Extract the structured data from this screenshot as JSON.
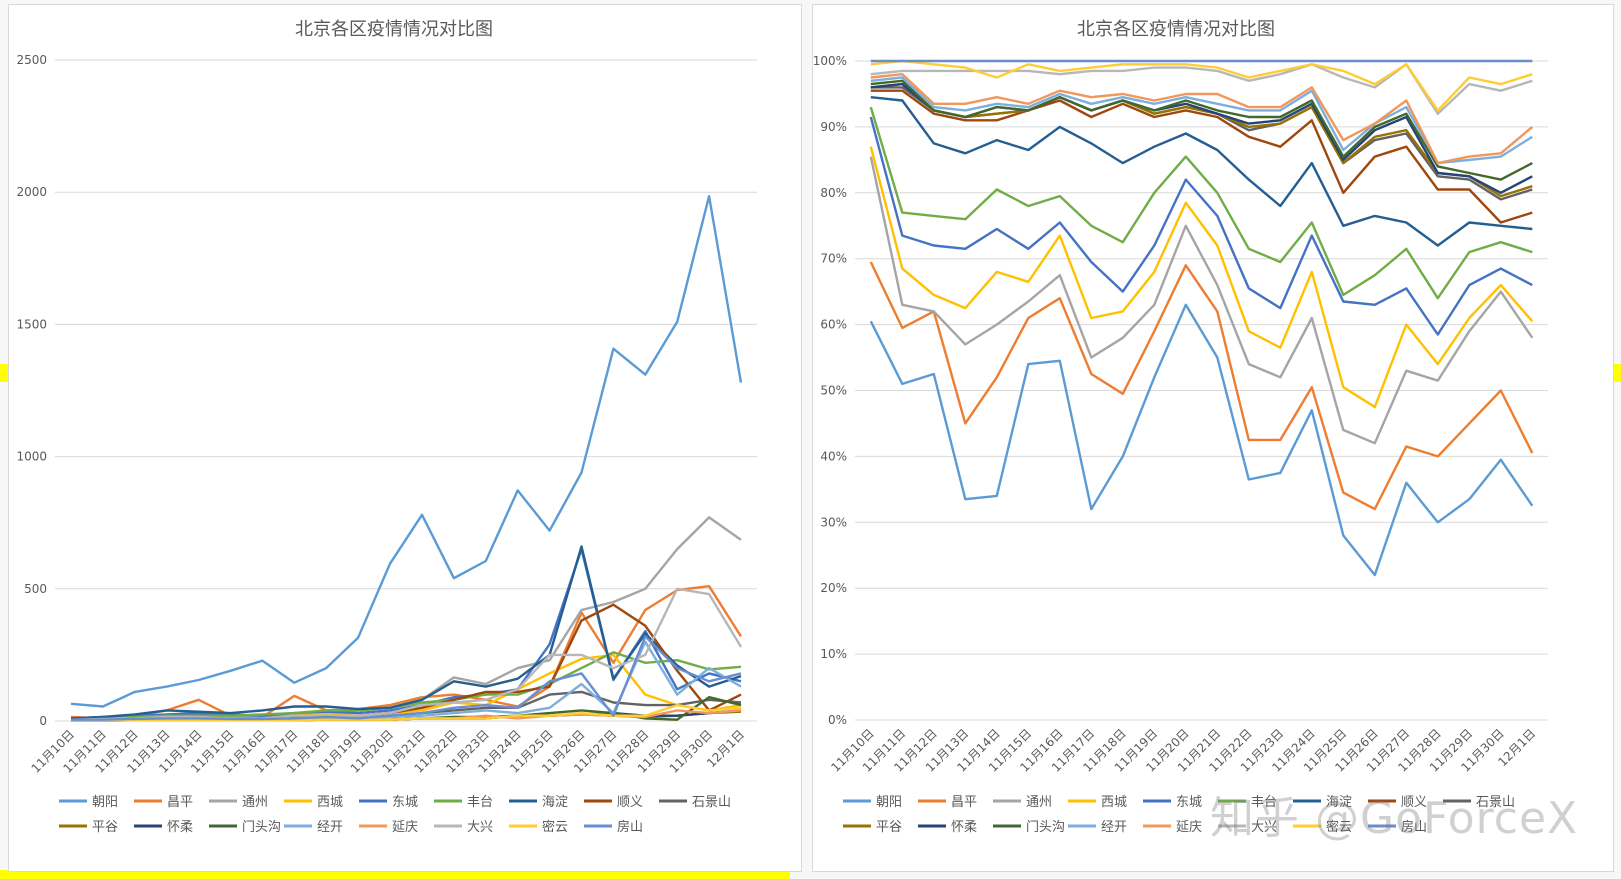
{
  "watermark": "知乎 @GoForceX",
  "colors": {
    "朝阳": "#5b9bd5",
    "昌平": "#ed7d31",
    "通州": "#a5a5a5",
    "西城": "#ffc000",
    "东城": "#4472c4",
    "丰台": "#70ad47",
    "海淀": "#255e91",
    "顺义": "#9e480e",
    "石景山": "#636363",
    "平谷": "#997300",
    "怀柔": "#264478",
    "门头沟": "#43682b",
    "经开": "#7cafdd",
    "延庆": "#f1975a",
    "大兴": "#b7b7b7",
    "密云": "#ffcd33",
    "房山": "#698ed0"
  },
  "chart_data": [
    {
      "type": "line",
      "title": "北京各区疫情情况对比图",
      "categories": [
        "11月10日",
        "11月11日",
        "11月12日",
        "11月13日",
        "11月14日",
        "11月15日",
        "11月16日",
        "11月17日",
        "11月18日",
        "11月19日",
        "11月20日",
        "11月21日",
        "11月22日",
        "11月23日",
        "11月24日",
        "11月25日",
        "11月26日",
        "11月27日",
        "11月28日",
        "11月29日",
        "11月30日",
        "12月1日"
      ],
      "ylim": [
        0,
        2500
      ],
      "yticks": [
        "0",
        "500",
        "1000",
        "1500",
        "2000",
        "2500"
      ],
      "series": [
        {
          "name": "朝阳",
          "values": [
            65,
            55,
            110,
            130,
            155,
            190,
            228,
            145,
            200,
            315,
            595,
            780,
            540,
            605,
            872,
            720,
            940,
            1408,
            1310,
            1510,
            1985,
            1280
          ]
        },
        {
          "name": "昌平",
          "values": [
            15,
            10,
            20,
            40,
            80,
            20,
            15,
            95,
            40,
            45,
            60,
            90,
            100,
            80,
            55,
            130,
            410,
            220,
            420,
            495,
            510,
            320
          ]
        },
        {
          "name": "通州",
          "values": [
            10,
            8,
            15,
            20,
            25,
            20,
            15,
            30,
            25,
            40,
            50,
            80,
            165,
            140,
            200,
            230,
            420,
            450,
            500,
            650,
            770,
            685
          ]
        },
        {
          "name": "西城",
          "values": [
            5,
            5,
            10,
            10,
            15,
            10,
            8,
            20,
            30,
            20,
            30,
            40,
            70,
            60,
            120,
            180,
            235,
            250,
            100,
            60,
            40,
            60
          ]
        },
        {
          "name": "东城",
          "values": [
            10,
            15,
            20,
            25,
            30,
            25,
            20,
            30,
            35,
            30,
            40,
            60,
            90,
            100,
            120,
            290,
            650,
            155,
            340,
            120,
            180,
            150
          ]
        },
        {
          "name": "丰台",
          "values": [
            5,
            10,
            15,
            20,
            20,
            20,
            25,
            30,
            40,
            40,
            50,
            70,
            80,
            100,
            100,
            140,
            200,
            260,
            220,
            230,
            195,
            205
          ]
        },
        {
          "name": "海淀",
          "values": [
            10,
            15,
            25,
            40,
            35,
            30,
            40,
            55,
            55,
            45,
            50,
            80,
            150,
            130,
            160,
            250,
            660,
            160,
            330,
            210,
            130,
            170
          ]
        },
        {
          "name": "顺义",
          "values": [
            5,
            5,
            10,
            10,
            15,
            10,
            10,
            15,
            20,
            20,
            30,
            50,
            80,
            110,
            110,
            130,
            380,
            440,
            360,
            190,
            40,
            100
          ]
        },
        {
          "name": "石景山",
          "values": [
            3,
            3,
            5,
            5,
            5,
            5,
            5,
            5,
            10,
            10,
            20,
            30,
            40,
            50,
            50,
            100,
            110,
            70,
            60,
            60,
            80,
            70
          ]
        },
        {
          "name": "平谷",
          "values": [
            2,
            2,
            3,
            3,
            3,
            3,
            3,
            3,
            5,
            5,
            5,
            10,
            10,
            10,
            20,
            20,
            25,
            20,
            15,
            20,
            30,
            35
          ]
        },
        {
          "name": "怀柔",
          "values": [
            2,
            2,
            3,
            3,
            3,
            3,
            3,
            3,
            5,
            5,
            5,
            10,
            10,
            10,
            20,
            20,
            25,
            30,
            20,
            20,
            30,
            40
          ]
        },
        {
          "name": "门头沟",
          "values": [
            2,
            2,
            3,
            3,
            3,
            3,
            3,
            3,
            5,
            5,
            5,
            10,
            15,
            15,
            20,
            30,
            40,
            30,
            10,
            5,
            90,
            60
          ]
        },
        {
          "name": "经开",
          "values": [
            5,
            5,
            8,
            10,
            10,
            8,
            8,
            10,
            15,
            10,
            15,
            20,
            30,
            40,
            30,
            50,
            140,
            30,
            300,
            100,
            200,
            130
          ]
        },
        {
          "name": "延庆",
          "values": [
            2,
            2,
            3,
            3,
            3,
            3,
            3,
            3,
            5,
            5,
            5,
            10,
            10,
            20,
            10,
            20,
            25,
            20,
            15,
            40,
            30,
            40
          ]
        },
        {
          "name": "大兴",
          "values": [
            5,
            8,
            10,
            15,
            15,
            10,
            10,
            20,
            20,
            20,
            30,
            60,
            70,
            80,
            120,
            250,
            250,
            200,
            250,
            500,
            480,
            280
          ]
        },
        {
          "name": "密云",
          "values": [
            2,
            2,
            3,
            3,
            3,
            3,
            3,
            3,
            5,
            5,
            5,
            10,
            10,
            10,
            20,
            20,
            30,
            20,
            20,
            60,
            40,
            50
          ]
        },
        {
          "name": "房山",
          "values": [
            5,
            5,
            8,
            10,
            10,
            8,
            8,
            10,
            15,
            10,
            20,
            30,
            50,
            60,
            50,
            150,
            180,
            20,
            320,
            200,
            150,
            180
          ]
        }
      ]
    },
    {
      "type": "line",
      "title": "北京各区疫情情况对比图",
      "categories": [
        "11月10日",
        "11月11日",
        "11月12日",
        "11月13日",
        "11月14日",
        "11月15日",
        "11月16日",
        "11月17日",
        "11月18日",
        "11月19日",
        "11月20日",
        "11月21日",
        "11月22日",
        "11月23日",
        "11月24日",
        "11月25日",
        "11月26日",
        "11月27日",
        "11月28日",
        "11月29日",
        "11月30日",
        "12月1日"
      ],
      "ylim": [
        0,
        100
      ],
      "yticks": [
        "0%",
        "10%",
        "20%",
        "30%",
        "40%",
        "50%",
        "60%",
        "70%",
        "80%",
        "90%",
        "100%"
      ],
      "series": [
        {
          "name": "朝阳",
          "values": [
            60.5,
            51,
            52.5,
            33.5,
            34,
            54,
            54.5,
            32,
            40,
            52,
            63,
            55,
            36.5,
            37.5,
            47,
            28,
            22,
            36,
            30,
            33.5,
            39.5,
            32.5
          ]
        },
        {
          "name": "昌平",
          "values": [
            69.5,
            59.5,
            62,
            45,
            52,
            61,
            64,
            52.5,
            49.5,
            59,
            69,
            62,
            42.5,
            42.5,
            50.5,
            34.5,
            32,
            41.5,
            40,
            45,
            50,
            40.5
          ]
        },
        {
          "name": "通州",
          "values": [
            85.5,
            63,
            62,
            57,
            60,
            63.5,
            67.5,
            55,
            58,
            63,
            75,
            66,
            54,
            52,
            61,
            44,
            42,
            53,
            51.5,
            59,
            65,
            58
          ]
        },
        {
          "name": "西城",
          "values": [
            87,
            68.5,
            64.5,
            62.5,
            68,
            66.5,
            73.5,
            61,
            62,
            68,
            78.5,
            72,
            59,
            56.5,
            68,
            50.5,
            47.5,
            60,
            54,
            61,
            66,
            60.5
          ]
        },
        {
          "name": "东城",
          "values": [
            91.5,
            73.5,
            72,
            71.5,
            74.5,
            71.5,
            75.5,
            69.5,
            65,
            72,
            82,
            76.5,
            65.5,
            62.5,
            73.5,
            63.5,
            63,
            65.5,
            58.5,
            66,
            68.5,
            66
          ]
        },
        {
          "name": "丰台",
          "values": [
            93,
            77,
            76.5,
            76,
            80.5,
            78,
            79.5,
            75,
            72.5,
            80,
            85.5,
            80,
            71.5,
            69.5,
            75.5,
            64.5,
            67.5,
            71.5,
            64,
            71,
            72.5,
            71
          ]
        },
        {
          "name": "海淀",
          "values": [
            94.5,
            94,
            87.5,
            86,
            88,
            86.5,
            90,
            87.5,
            84.5,
            87,
            89,
            86.5,
            82,
            78,
            84.5,
            75,
            76.5,
            75.5,
            72,
            75.5,
            75,
            74.5
          ]
        },
        {
          "name": "顺义",
          "values": [
            95.5,
            95.5,
            92,
            91,
            91,
            92.5,
            94,
            91.5,
            93.5,
            91.5,
            92.5,
            91.5,
            88.5,
            87,
            91,
            80,
            85.5,
            87,
            80.5,
            80.5,
            75.5,
            77
          ]
        },
        {
          "name": "石景山",
          "values": [
            96,
            96,
            92.5,
            91.5,
            92,
            92.5,
            94.5,
            92.5,
            94,
            92,
            93,
            92,
            89.5,
            90.5,
            93,
            84.5,
            88,
            89,
            82.5,
            82,
            79,
            80.5
          ]
        },
        {
          "name": "平谷",
          "values": [
            96,
            96.5,
            92.5,
            91.5,
            92,
            92.5,
            94.5,
            92.5,
            94,
            92,
            93,
            92,
            90,
            90.5,
            93,
            84.5,
            88.5,
            89.5,
            83,
            82.5,
            79.5,
            81
          ]
        },
        {
          "name": "怀柔",
          "values": [
            96,
            96.5,
            92.5,
            91.5,
            93,
            92.5,
            94.5,
            92.5,
            94,
            92.5,
            93.5,
            92,
            90.5,
            91,
            93.5,
            85,
            89.5,
            91.5,
            83,
            82.5,
            80,
            82.5
          ]
        },
        {
          "name": "门头沟",
          "values": [
            96.5,
            97,
            92.5,
            91.5,
            93,
            92.5,
            94.5,
            92.5,
            94,
            92.5,
            94,
            92.5,
            91.5,
            91.5,
            94,
            85.5,
            90,
            92,
            84,
            83,
            82,
            84.5
          ]
        },
        {
          "name": "经开",
          "values": [
            97,
            97.5,
            93,
            92.5,
            93.5,
            93,
            95,
            93.5,
            94.5,
            93.5,
            94.5,
            93.5,
            92.5,
            92.5,
            95.5,
            86.5,
            90.5,
            93,
            84.5,
            85,
            85.5,
            88.5
          ]
        },
        {
          "name": "延庆",
          "values": [
            97.5,
            98,
            93.5,
            93.5,
            94.5,
            93.5,
            95.5,
            94.5,
            95,
            94,
            95,
            95,
            93,
            93,
            96,
            88,
            90.5,
            94,
            84.5,
            85.5,
            86,
            90
          ]
        },
        {
          "name": "大兴",
          "values": [
            98,
            98.5,
            98.5,
            98.5,
            98.5,
            98.5,
            98,
            98.5,
            98.5,
            99,
            99,
            98.5,
            97,
            98,
            99.5,
            97.5,
            96,
            99.5,
            92,
            96.5,
            95.5,
            97
          ]
        },
        {
          "name": "密云",
          "values": [
            99.5,
            100,
            99.5,
            99,
            97.5,
            99.5,
            98.5,
            99,
            99.5,
            99.5,
            99.5,
            99,
            97.5,
            98.5,
            99.5,
            98.5,
            96.5,
            99.5,
            92.5,
            97.5,
            96.5,
            98
          ]
        },
        {
          "name": "房山",
          "values": [
            100,
            100,
            100,
            100,
            100,
            100,
            100,
            100,
            100,
            100,
            100,
            100,
            100,
            100,
            100,
            100,
            100,
            100,
            100,
            100,
            100,
            100
          ]
        }
      ]
    }
  ]
}
